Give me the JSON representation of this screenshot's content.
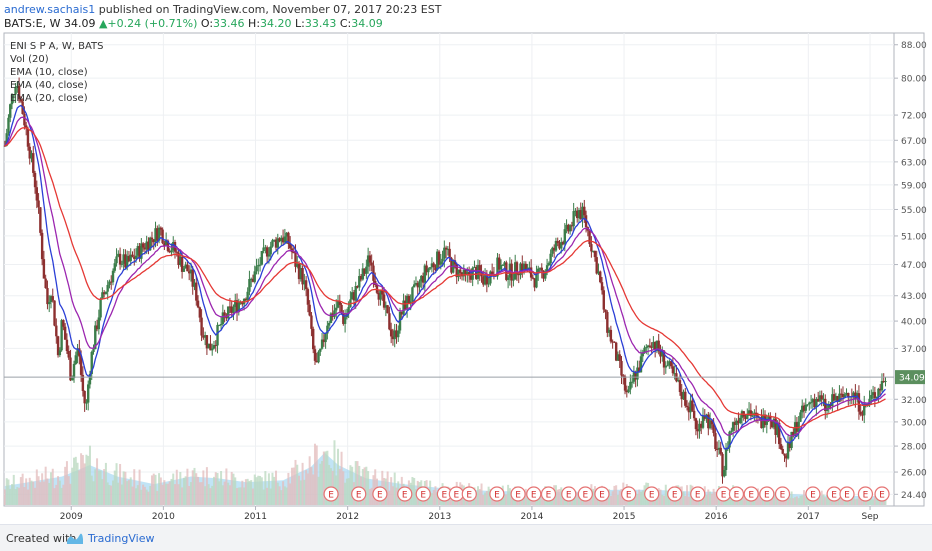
{
  "header": {
    "author": "andrew.sachais1",
    "published": "published on TradingView.com, November 07, 2017 20:23 EST",
    "symbol": "BATS:E, W",
    "last": "34.09",
    "change": "+0.24 (+0.71%)",
    "o_label": "O:",
    "o_value": "33.46",
    "h_label": "H:",
    "h_value": "34.20",
    "l_label": "L:",
    "l_value": "33.43",
    "c_label": "C:",
    "c_value": "34.09"
  },
  "footer": {
    "created_with": "Created with",
    "brand": "TradingView"
  },
  "chart_data": {
    "type": "candlestick",
    "legend": [
      "ENI S P A, W, BATS",
      "Vol (20)",
      "EMA (10, close)",
      "EMA (40, close)",
      "EMA (20, close)"
    ],
    "y_ticks": [
      88.0,
      80.0,
      72.0,
      67.0,
      63.0,
      59.0,
      55.0,
      51.0,
      47.0,
      43.0,
      40.0,
      37.0,
      32.0,
      30.0,
      28.0,
      26.0,
      24.4
    ],
    "y_tick_labels": [
      "88.00",
      "80.00",
      "72.00",
      "67.00",
      "63.00",
      "59.00",
      "55.00",
      "51.00",
      "47.00",
      "43.00",
      "40.00",
      "37.00",
      "32.00",
      "30.00",
      "28.00",
      "26.00",
      "24.40"
    ],
    "y_scale": "log",
    "ylim": [
      23.6,
      91
    ],
    "last_price": 34.09,
    "last_price_label": "34.09",
    "x_ticks": [
      {
        "label": "2009",
        "year": 2009.0
      },
      {
        "label": "2010",
        "year": 2010.0
      },
      {
        "label": "2011",
        "year": 2011.0
      },
      {
        "label": "2012",
        "year": 2012.0
      },
      {
        "label": "2013",
        "year": 2013.0
      },
      {
        "label": "2014",
        "year": 2014.0
      },
      {
        "label": "2015",
        "year": 2015.0
      },
      {
        "label": "2016",
        "year": 2016.0
      },
      {
        "label": "2017",
        "year": 2017.0
      },
      {
        "label": "Sep",
        "year": 2017.67
      }
    ],
    "xlim": [
      2008.27,
      2017.93
    ],
    "price_path": [
      [
        2008.28,
        66
      ],
      [
        2008.34,
        74
      ],
      [
        2008.4,
        80
      ],
      [
        2008.44,
        76
      ],
      [
        2008.5,
        70
      ],
      [
        2008.56,
        64
      ],
      [
        2008.62,
        58
      ],
      [
        2008.66,
        52
      ],
      [
        2008.7,
        46
      ],
      [
        2008.74,
        42
      ],
      [
        2008.78,
        44
      ],
      [
        2008.82,
        40
      ],
      [
        2008.86,
        36
      ],
      [
        2008.9,
        40
      ],
      [
        2008.95,
        37
      ],
      [
        2009.0,
        34
      ],
      [
        2009.04,
        36
      ],
      [
        2009.08,
        37
      ],
      [
        2009.12,
        33
      ],
      [
        2009.16,
        31
      ],
      [
        2009.2,
        35
      ],
      [
        2009.25,
        38
      ],
      [
        2009.32,
        42
      ],
      [
        2009.38,
        44
      ],
      [
        2009.45,
        46
      ],
      [
        2009.52,
        48
      ],
      [
        2009.6,
        47
      ],
      [
        2009.68,
        48
      ],
      [
        2009.75,
        49
      ],
      [
        2009.82,
        50
      ],
      [
        2009.9,
        51
      ],
      [
        2009.96,
        52
      ],
      [
        2010.04,
        50
      ],
      [
        2010.12,
        49
      ],
      [
        2010.2,
        47
      ],
      [
        2010.28,
        46
      ],
      [
        2010.36,
        43
      ],
      [
        2010.42,
        39
      ],
      [
        2010.5,
        37
      ],
      [
        2010.56,
        38
      ],
      [
        2010.64,
        40
      ],
      [
        2010.72,
        41
      ],
      [
        2010.8,
        42
      ],
      [
        2010.88,
        43
      ],
      [
        2010.96,
        45
      ],
      [
        2011.04,
        47
      ],
      [
        2011.12,
        49
      ],
      [
        2011.2,
        50
      ],
      [
        2011.28,
        51
      ],
      [
        2011.36,
        50
      ],
      [
        2011.44,
        47
      ],
      [
        2011.52,
        45
      ],
      [
        2011.58,
        41
      ],
      [
        2011.62,
        37
      ],
      [
        2011.66,
        35
      ],
      [
        2011.72,
        37
      ],
      [
        2011.78,
        40
      ],
      [
        2011.84,
        41
      ],
      [
        2011.9,
        42
      ],
      [
        2011.96,
        40
      ],
      [
        2012.02,
        42
      ],
      [
        2012.1,
        44
      ],
      [
        2012.18,
        46
      ],
      [
        2012.24,
        48
      ],
      [
        2012.3,
        45
      ],
      [
        2012.38,
        42
      ],
      [
        2012.44,
        40
      ],
      [
        2012.5,
        38
      ],
      [
        2012.56,
        40
      ],
      [
        2012.62,
        42
      ],
      [
        2012.7,
        43
      ],
      [
        2012.76,
        44
      ],
      [
        2012.84,
        46
      ],
      [
        2012.92,
        47
      ],
      [
        2013.0,
        48
      ],
      [
        2013.06,
        49
      ],
      [
        2013.12,
        47
      ],
      [
        2013.2,
        46
      ],
      [
        2013.28,
        45
      ],
      [
        2013.34,
        46
      ],
      [
        2013.4,
        46
      ],
      [
        2013.48,
        45
      ],
      [
        2013.56,
        46
      ],
      [
        2013.64,
        47
      ],
      [
        2013.72,
        46
      ],
      [
        2013.8,
        46
      ],
      [
        2013.88,
        47
      ],
      [
        2013.96,
        46
      ],
      [
        2014.04,
        45
      ],
      [
        2014.12,
        46
      ],
      [
        2014.2,
        48
      ],
      [
        2014.28,
        50
      ],
      [
        2014.36,
        51
      ],
      [
        2014.44,
        53
      ],
      [
        2014.5,
        55
      ],
      [
        2014.56,
        54
      ],
      [
        2014.6,
        52
      ],
      [
        2014.66,
        49
      ],
      [
        2014.72,
        46
      ],
      [
        2014.76,
        43
      ],
      [
        2014.8,
        40
      ],
      [
        2014.86,
        38
      ],
      [
        2014.92,
        36
      ],
      [
        2014.98,
        34
      ],
      [
        2015.04,
        32
      ],
      [
        2015.1,
        34
      ],
      [
        2015.16,
        35
      ],
      [
        2015.24,
        37
      ],
      [
        2015.3,
        38
      ],
      [
        2015.36,
        37
      ],
      [
        2015.42,
        36
      ],
      [
        2015.48,
        35
      ],
      [
        2015.54,
        34
      ],
      [
        2015.6,
        33
      ],
      [
        2015.66,
        32
      ],
      [
        2015.74,
        31
      ],
      [
        2015.8,
        29
      ],
      [
        2015.86,
        31
      ],
      [
        2015.92,
        30
      ],
      [
        2016.0,
        28
      ],
      [
        2016.04,
        27
      ],
      [
        2016.08,
        26
      ],
      [
        2016.14,
        29
      ],
      [
        2016.2,
        30
      ],
      [
        2016.28,
        31
      ],
      [
        2016.36,
        31
      ],
      [
        2016.44,
        30
      ],
      [
        2016.5,
        30
      ],
      [
        2016.56,
        31
      ],
      [
        2016.62,
        30
      ],
      [
        2016.68,
        29
      ],
      [
        2016.74,
        27
      ],
      [
        2016.8,
        28
      ],
      [
        2016.88,
        30
      ],
      [
        2016.96,
        31
      ],
      [
        2017.04,
        32
      ],
      [
        2017.12,
        32
      ],
      [
        2017.2,
        31
      ],
      [
        2017.28,
        32
      ],
      [
        2017.36,
        32
      ],
      [
        2017.44,
        33
      ],
      [
        2017.52,
        32
      ],
      [
        2017.6,
        31
      ],
      [
        2017.68,
        32
      ],
      [
        2017.76,
        33
      ],
      [
        2017.84,
        34.09
      ]
    ],
    "volume_profile": [
      [
        2008.28,
        0.2
      ],
      [
        2008.6,
        0.25
      ],
      [
        2008.9,
        0.3
      ],
      [
        2009.2,
        0.42
      ],
      [
        2009.5,
        0.3
      ],
      [
        2009.9,
        0.22
      ],
      [
        2010.3,
        0.3
      ],
      [
        2010.6,
        0.28
      ],
      [
        2010.9,
        0.24
      ],
      [
        2011.3,
        0.26
      ],
      [
        2011.6,
        0.4
      ],
      [
        2011.75,
        0.55
      ],
      [
        2011.9,
        0.42
      ],
      [
        2012.2,
        0.28
      ],
      [
        2012.6,
        0.22
      ],
      [
        2013.0,
        0.18
      ],
      [
        2013.5,
        0.15
      ],
      [
        2014.0,
        0.14
      ],
      [
        2014.5,
        0.14
      ],
      [
        2014.9,
        0.16
      ],
      [
        2015.3,
        0.16
      ],
      [
        2015.8,
        0.14
      ],
      [
        2016.2,
        0.14
      ],
      [
        2016.7,
        0.12
      ],
      [
        2017.2,
        0.1
      ],
      [
        2017.84,
        0.09
      ]
    ],
    "earnings_marker_label": "E",
    "earnings_markers": [
      2011.82,
      2012.12,
      2012.35,
      2012.62,
      2012.82,
      2013.05,
      2013.18,
      2013.32,
      2013.62,
      2013.85,
      2014.02,
      2014.18,
      2014.4,
      2014.58,
      2014.76,
      2015.05,
      2015.3,
      2015.55,
      2015.8,
      2016.08,
      2016.22,
      2016.38,
      2016.55,
      2016.72,
      2017.05,
      2017.28,
      2017.42,
      2017.62,
      2017.8
    ]
  }
}
